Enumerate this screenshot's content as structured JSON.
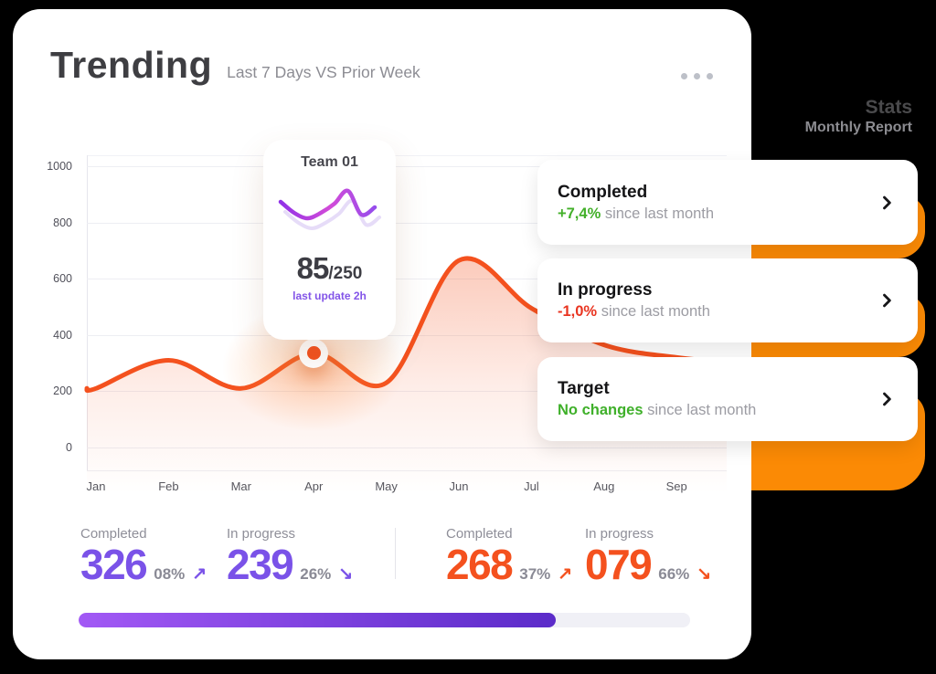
{
  "app": {
    "background": "#000000"
  },
  "header": {
    "title": "Trending",
    "subtitle": "Last 7 Days VS Prior Week",
    "menu_icon": "ellipsis-horizontal"
  },
  "side_header": {
    "title": "Stats",
    "subtitle": "Monthly Report"
  },
  "chart_data": {
    "type": "area",
    "x_labels": [
      "Jan",
      "Feb",
      "Mar",
      "Apr",
      "May",
      "Jun",
      "Jul",
      "Aug",
      "Sep"
    ],
    "series": [
      {
        "name": "Last 7 Days",
        "color": "#F4511E",
        "values": [
          210,
          310,
          210,
          335,
          230,
          665,
          495,
          365,
          320
        ]
      }
    ],
    "ylim": [
      0,
      1000
    ],
    "yticks": [
      1000,
      800,
      600,
      400,
      200,
      0
    ],
    "grid": true,
    "legend": "none",
    "marker": {
      "x_label": "Apr",
      "value": 335
    }
  },
  "tooltip": {
    "title": "Team 01",
    "value": "85",
    "total": "/250",
    "note": "last update 2h",
    "spark": {
      "values": [
        32,
        20,
        14,
        20,
        30,
        44,
        18,
        26
      ],
      "gradient": [
        "#8B30E8",
        "#D24BD8",
        "#8A4DF0"
      ],
      "echo_color": "#E6DCF8"
    }
  },
  "info_cards": [
    {
      "title": "Completed",
      "highlight": "+7,4%",
      "highlight_color": "#43B02A",
      "rest": "since last month"
    },
    {
      "title": "In progress",
      "highlight": "-1,0%",
      "highlight_color": "#E93420",
      "rest": "since last month"
    },
    {
      "title": "Target",
      "highlight": "No changes",
      "highlight_color": "#3FB02A",
      "rest": "since last month"
    }
  ],
  "summary_stats": [
    {
      "label": "Completed",
      "value": "326",
      "pct": "08%",
      "arrow": "↗",
      "accent": "#7A52E8"
    },
    {
      "label": "In progress",
      "value": "239",
      "pct": "26%",
      "arrow": "↘",
      "accent": "#7A52E8"
    },
    {
      "label": "Completed",
      "value": "268",
      "pct": "37%",
      "arrow": "↗",
      "accent": "#F4511E"
    },
    {
      "label": "In progress",
      "value": "079",
      "pct": "66%",
      "arrow": "↘",
      "accent": "#F4511E"
    }
  ],
  "progress": {
    "percent": 78,
    "gradient": [
      "#A259F5",
      "#5B2BC9"
    ],
    "track": "#F0F0F6"
  },
  "colors": {
    "line_orange": "#F4511E",
    "blob_orange": "#FB8A05",
    "accent_purple": "#7A52E8",
    "grid": "#EDEEF3",
    "card_bg": "#FFFFFF"
  }
}
